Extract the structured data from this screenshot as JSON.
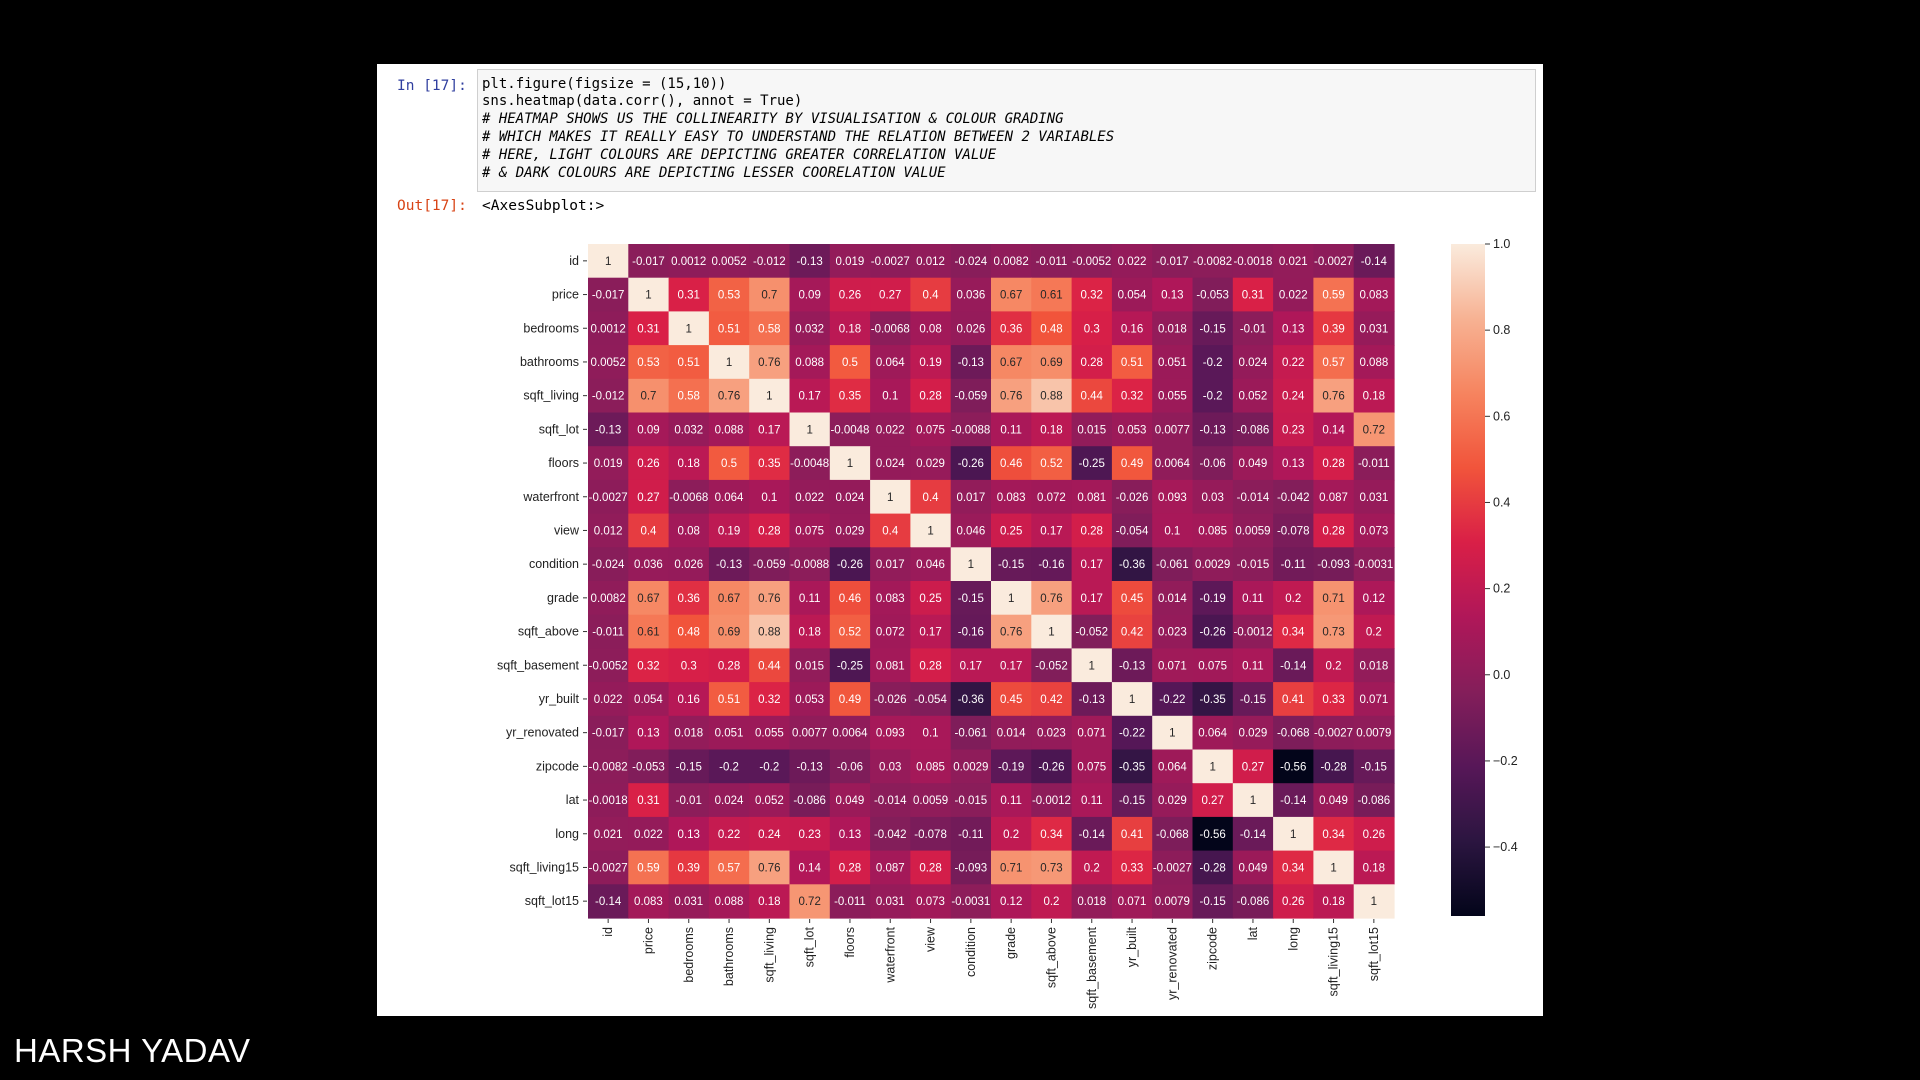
{
  "notebook": {
    "in_prompt": "In [17]:",
    "out_prompt": "Out[17]:",
    "code_lines": [
      "plt.figure(figsize = (15,10))",
      "sns.heatmap(data.corr(), annot = True)",
      "# HEATMAP SHOWS US THE COLLINEARITY BY VISUALISATION & COLOUR GRADING",
      "# WHICH MAKES IT REALLY EASY TO UNDERSTAND THE RELATION BETWEEN 2 VARIABLES",
      "# HERE, LIGHT COLOURS ARE DEPICTING GREATER CORRELATION VALUE",
      "# & DARK COLOURS ARE DEPICTING LESSER COORELATION VALUE"
    ],
    "output_text": "<AxesSubplot:>"
  },
  "author": "HARSH YADAV",
  "chart_data": {
    "type": "heatmap",
    "variables": [
      "id",
      "price",
      "bedrooms",
      "bathrooms",
      "sqft_living",
      "sqft_lot",
      "floors",
      "waterfront",
      "view",
      "condition",
      "grade",
      "sqft_above",
      "sqft_basement",
      "yr_built",
      "yr_renovated",
      "zipcode",
      "lat",
      "long",
      "sqft_living15",
      "sqft_lot15"
    ],
    "labels": [
      [
        "1",
        "-0.017",
        "0.0012",
        "0.0052",
        "-0.012",
        "-0.13",
        "0.019",
        "-0.0027",
        "0.012",
        "-0.024",
        "0.0082",
        "-0.011",
        "-0.0052",
        "0.022",
        "-0.017",
        "-0.0082",
        "-0.0018",
        "0.021",
        "-0.0027",
        "-0.14"
      ],
      [
        "-0.017",
        "1",
        "0.31",
        "0.53",
        "0.7",
        "0.09",
        "0.26",
        "0.27",
        "0.4",
        "0.036",
        "0.67",
        "0.61",
        "0.32",
        "0.054",
        "0.13",
        "-0.053",
        "0.31",
        "0.022",
        "0.59",
        "0.083"
      ],
      [
        "0.0012",
        "0.31",
        "1",
        "0.51",
        "0.58",
        "0.032",
        "0.18",
        "-0.0068",
        "0.08",
        "0.026",
        "0.36",
        "0.48",
        "0.3",
        "0.16",
        "0.018",
        "-0.15",
        "-0.01",
        "0.13",
        "0.39",
        "0.031"
      ],
      [
        "0.0052",
        "0.53",
        "0.51",
        "1",
        "0.76",
        "0.088",
        "0.5",
        "0.064",
        "0.19",
        "-0.13",
        "0.67",
        "0.69",
        "0.28",
        "0.51",
        "0.051",
        "-0.2",
        "0.024",
        "0.22",
        "0.57",
        "0.088"
      ],
      [
        "-0.012",
        "0.7",
        "0.58",
        "0.76",
        "1",
        "0.17",
        "0.35",
        "0.1",
        "0.28",
        "-0.059",
        "0.76",
        "0.88",
        "0.44",
        "0.32",
        "0.055",
        "-0.2",
        "0.052",
        "0.24",
        "0.76",
        "0.18"
      ],
      [
        "-0.13",
        "0.09",
        "0.032",
        "0.088",
        "0.17",
        "1",
        "-0.0048",
        "0.022",
        "0.075",
        "-0.0088",
        "0.11",
        "0.18",
        "0.015",
        "0.053",
        "0.0077",
        "-0.13",
        "-0.086",
        "0.23",
        "0.14",
        "0.72"
      ],
      [
        "0.019",
        "0.26",
        "0.18",
        "0.5",
        "0.35",
        "-0.0048",
        "1",
        "0.024",
        "0.029",
        "-0.26",
        "0.46",
        "0.52",
        "-0.25",
        "0.49",
        "0.0064",
        "-0.06",
        "0.049",
        "0.13",
        "0.28",
        "-0.011"
      ],
      [
        "-0.0027",
        "0.27",
        "-0.0068",
        "0.064",
        "0.1",
        "0.022",
        "0.024",
        "1",
        "0.4",
        "0.017",
        "0.083",
        "0.072",
        "0.081",
        "-0.026",
        "0.093",
        "0.03",
        "-0.014",
        "-0.042",
        "0.087",
        "0.031"
      ],
      [
        "0.012",
        "0.4",
        "0.08",
        "0.19",
        "0.28",
        "0.075",
        "0.029",
        "0.4",
        "1",
        "0.046",
        "0.25",
        "0.17",
        "0.28",
        "-0.054",
        "0.1",
        "0.085",
        "0.0059",
        "-0.078",
        "0.28",
        "0.073"
      ],
      [
        "-0.024",
        "0.036",
        "0.026",
        "-0.13",
        "-0.059",
        "-0.0088",
        "-0.26",
        "0.017",
        "0.046",
        "1",
        "-0.15",
        "-0.16",
        "0.17",
        "-0.36",
        "-0.061",
        "0.0029",
        "-0.015",
        "-0.11",
        "-0.093",
        "-0.0031"
      ],
      [
        "0.0082",
        "0.67",
        "0.36",
        "0.67",
        "0.76",
        "0.11",
        "0.46",
        "0.083",
        "0.25",
        "-0.15",
        "1",
        "0.76",
        "0.17",
        "0.45",
        "0.014",
        "-0.19",
        "0.11",
        "0.2",
        "0.71",
        "0.12"
      ],
      [
        "-0.011",
        "0.61",
        "0.48",
        "0.69",
        "0.88",
        "0.18",
        "0.52",
        "0.072",
        "0.17",
        "-0.16",
        "0.76",
        "1",
        "-0.052",
        "0.42",
        "0.023",
        "-0.26",
        "-0.0012",
        "0.34",
        "0.73",
        "0.2"
      ],
      [
        "-0.0052",
        "0.32",
        "0.3",
        "0.28",
        "0.44",
        "0.015",
        "-0.25",
        "0.081",
        "0.28",
        "0.17",
        "0.17",
        "-0.052",
        "1",
        "-0.13",
        "0.071",
        "0.075",
        "0.11",
        "-0.14",
        "0.2",
        "0.018"
      ],
      [
        "0.022",
        "0.054",
        "0.16",
        "0.51",
        "0.32",
        "0.053",
        "0.49",
        "-0.026",
        "-0.054",
        "-0.36",
        "0.45",
        "0.42",
        "-0.13",
        "1",
        "-0.22",
        "-0.35",
        "-0.15",
        "0.41",
        "0.33",
        "0.071"
      ],
      [
        "-0.017",
        "0.13",
        "0.018",
        "0.051",
        "0.055",
        "0.0077",
        "0.0064",
        "0.093",
        "0.1",
        "-0.061",
        "0.014",
        "0.023",
        "0.071",
        "-0.22",
        "1",
        "0.064",
        "0.029",
        "-0.068",
        "-0.0027",
        "0.0079"
      ],
      [
        "-0.0082",
        "-0.053",
        "-0.15",
        "-0.2",
        "-0.2",
        "-0.13",
        "-0.06",
        "0.03",
        "0.085",
        "0.0029",
        "-0.19",
        "-0.26",
        "0.075",
        "-0.35",
        "0.064",
        "1",
        "0.27",
        "-0.56",
        "-0.28",
        "-0.15"
      ],
      [
        "-0.0018",
        "0.31",
        "-0.01",
        "0.024",
        "0.052",
        "-0.086",
        "0.049",
        "-0.014",
        "0.0059",
        "-0.015",
        "0.11",
        "-0.0012",
        "0.11",
        "-0.15",
        "0.029",
        "0.27",
        "1",
        "-0.14",
        "0.049",
        "-0.086"
      ],
      [
        "0.021",
        "0.022",
        "0.13",
        "0.22",
        "0.24",
        "0.23",
        "0.13",
        "-0.042",
        "-0.078",
        "-0.11",
        "0.2",
        "0.34",
        "-0.14",
        "0.41",
        "-0.068",
        "-0.56",
        "-0.14",
        "1",
        "0.34",
        "0.26"
      ],
      [
        "-0.0027",
        "0.59",
        "0.39",
        "0.57",
        "0.76",
        "0.14",
        "0.28",
        "0.087",
        "0.28",
        "-0.093",
        "0.71",
        "0.73",
        "0.2",
        "0.33",
        "-0.0027",
        "-0.28",
        "0.049",
        "0.34",
        "1",
        "0.18"
      ],
      [
        "-0.14",
        "0.083",
        "0.031",
        "0.088",
        "0.18",
        "0.72",
        "-0.011",
        "0.031",
        "0.073",
        "-0.0031",
        "0.12",
        "0.2",
        "0.018",
        "0.071",
        "0.0079",
        "-0.15",
        "-0.086",
        "0.26",
        "0.18",
        "1"
      ]
    ],
    "vmin": -0.56,
    "vmax": 1.0,
    "colorbar_ticks": [
      "1.0",
      "0.8",
      "0.6",
      "0.4",
      "0.2",
      "0.0",
      "−0.2",
      "−0.4"
    ],
    "colorbar_tick_values": [
      1.0,
      0.8,
      0.6,
      0.4,
      0.2,
      0.0,
      -0.2,
      -0.4
    ],
    "colormap": "rocket",
    "colormap_stops": [
      "#03051a",
      "#2b1540",
      "#571758",
      "#841e5a",
      "#b01759",
      "#d91f47",
      "#f1543b",
      "#f6845f",
      "#f7b293",
      "#faebdd"
    ]
  }
}
